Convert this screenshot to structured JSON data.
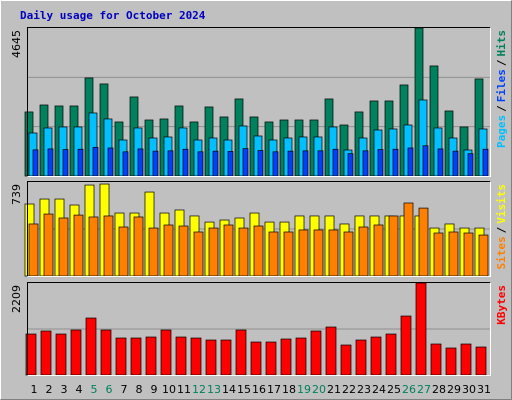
{
  "chart_data": [
    {
      "type": "bar",
      "title": "Daily usage for October 2024",
      "ylim": [
        0,
        4645
      ],
      "yticks": [
        4645
      ],
      "legend_separator": "/",
      "series": [
        {
          "name": "Pages",
          "color": "#00c0ff",
          "values": [
            1350,
            1507,
            1539,
            1539,
            1978,
            1790,
            1130,
            1507,
            1193,
            1225,
            1507,
            1130,
            1193,
            1130,
            1570,
            1256,
            1130,
            1193,
            1225,
            1225,
            1539,
            816,
            1193,
            1444,
            1476,
            1601,
            2386,
            1507,
            1193,
            816,
            1476
          ]
        },
        {
          "name": "Files",
          "color": "#0040ff",
          "values": [
            820,
            850,
            830,
            840,
            900,
            880,
            760,
            850,
            780,
            790,
            840,
            760,
            780,
            770,
            860,
            800,
            760,
            780,
            790,
            790,
            840,
            700,
            790,
            830,
            840,
            880,
            950,
            850,
            780,
            700,
            840
          ]
        },
        {
          "name": "Hits",
          "color": "#00805c",
          "values": [
            2010,
            2229,
            2198,
            2198,
            3077,
            2889,
            1696,
            2481,
            1758,
            1790,
            2198,
            1696,
            2167,
            1853,
            2418,
            1853,
            1696,
            1758,
            1758,
            1758,
            2418,
            1601,
            2010,
            2355,
            2355,
            2857,
            4645,
            3454,
            2041,
            1539,
            3046
          ]
        }
      ]
    },
    {
      "type": "bar",
      "ylim": [
        0,
        739
      ],
      "yticks": [
        739
      ],
      "legend_separator": "/",
      "series": [
        {
          "name": "Sites",
          "color": "#ff8000",
          "values": [
            409,
            487,
            456,
            479,
            464,
            472,
            385,
            464,
            377,
            401,
            393,
            346,
            377,
            401,
            377,
            393,
            346,
            346,
            362,
            362,
            362,
            346,
            385,
            401,
            472,
            574,
            534,
            338,
            346,
            338,
            322
          ]
        },
        {
          "name": "Visits",
          "color": "#ffff00",
          "values": [
            566,
            605,
            605,
            558,
            715,
            723,
            495,
            495,
            660,
            495,
            519,
            472,
            424,
            440,
            456,
            495,
            424,
            424,
            472,
            472,
            472,
            409,
            472,
            472,
            472,
            472,
            472,
            377,
            409,
            377,
            377
          ]
        }
      ]
    },
    {
      "type": "bar",
      "ylim": [
        0,
        2209
      ],
      "yticks": [
        2209
      ],
      "categories": [
        "1",
        "2",
        "3",
        "4",
        "5",
        "6",
        "7",
        "8",
        "9",
        "10",
        "11",
        "12",
        "13",
        "14",
        "15",
        "16",
        "17",
        "18",
        "19",
        "20",
        "21",
        "22",
        "23",
        "24",
        "25",
        "26",
        "27",
        "28",
        "29",
        "30",
        "31"
      ],
      "category_colors": [
        "#000000",
        "#000000",
        "#000000",
        "#000000",
        "#00805c",
        "#00805c",
        "#000000",
        "#000000",
        "#000000",
        "#000000",
        "#000000",
        "#00805c",
        "#00805c",
        "#000000",
        "#000000",
        "#000000",
        "#000000",
        "#000000",
        "#00805c",
        "#00805c",
        "#000000",
        "#000000",
        "#000000",
        "#000000",
        "#000000",
        "#00805c",
        "#00805c",
        "#000000",
        "#000000",
        "#000000",
        "#000000"
      ],
      "series": [
        {
          "name": "KBytes",
          "color": "#ff0000",
          "values": [
            984,
            1056,
            984,
            1080,
            1368,
            1080,
            888,
            888,
            912,
            1080,
            912,
            888,
            840,
            840,
            1080,
            792,
            792,
            864,
            888,
            1056,
            1152,
            720,
            840,
            912,
            984,
            1416,
            2209,
            744,
            648,
            744,
            672
          ]
        }
      ]
    }
  ]
}
